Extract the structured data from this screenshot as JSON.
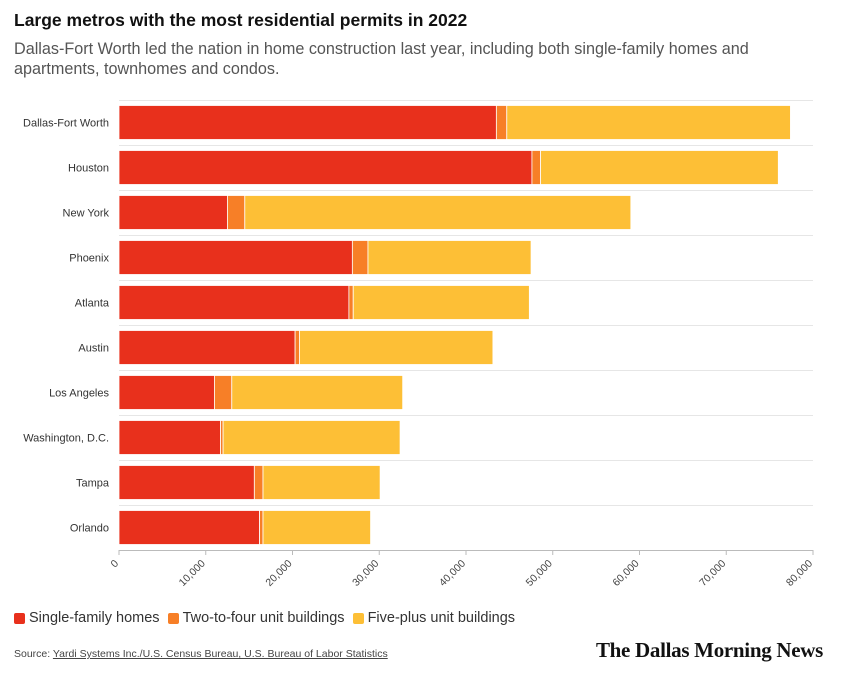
{
  "title": "Large metros with the most residential permits in 2022",
  "subtitle": "Dallas-Fort Worth led the nation in home construction last year, including both single-family homes and apartments, townhomes and condos.",
  "source_label": "Source: ",
  "source_text": "Yardi Systems Inc./U.S. Census Bureau, U.S. Bureau of Labor Statistics",
  "logo": "The Dallas Morning News",
  "colors": {
    "single": "#e8301c",
    "two_four": "#f77f27",
    "five_plus": "#fdbf36",
    "grid": "#e6e6e6",
    "axis": "#bbbbbb"
  },
  "chart_data": {
    "type": "bar",
    "orientation": "horizontal",
    "stacked": true,
    "categories": [
      "Dallas-Fort Worth",
      "Houston",
      "New York",
      "Phoenix",
      "Atlanta",
      "Austin",
      "Los Angeles",
      "Washington, D.C.",
      "Tampa",
      "Orlando"
    ],
    "series": [
      {
        "name": "Single-family homes",
        "color": "#e8301c",
        "values": [
          43500,
          47600,
          12500,
          26900,
          26500,
          20300,
          11000,
          11700,
          15600,
          16200
        ]
      },
      {
        "name": "Two-to-four unit buildings",
        "color": "#f77f27",
        "values": [
          1200,
          1000,
          2000,
          1800,
          500,
          500,
          2000,
          300,
          1000,
          400
        ]
      },
      {
        "name": "Five-plus unit buildings",
        "color": "#fdbf36",
        "values": [
          32700,
          27400,
          44500,
          18800,
          20300,
          22300,
          19700,
          20400,
          13500,
          12400
        ]
      }
    ],
    "xlim": [
      0,
      80000
    ],
    "xticks": [
      0,
      10000,
      20000,
      30000,
      40000,
      50000,
      60000,
      70000,
      80000
    ],
    "xtick_labels": [
      "0",
      "10,000",
      "20,000",
      "30,000",
      "40,000",
      "50,000",
      "60,000",
      "70,000",
      "80,000"
    ],
    "xlabel": "",
    "ylabel": "",
    "grid": true,
    "legend_position": "bottom-left"
  }
}
